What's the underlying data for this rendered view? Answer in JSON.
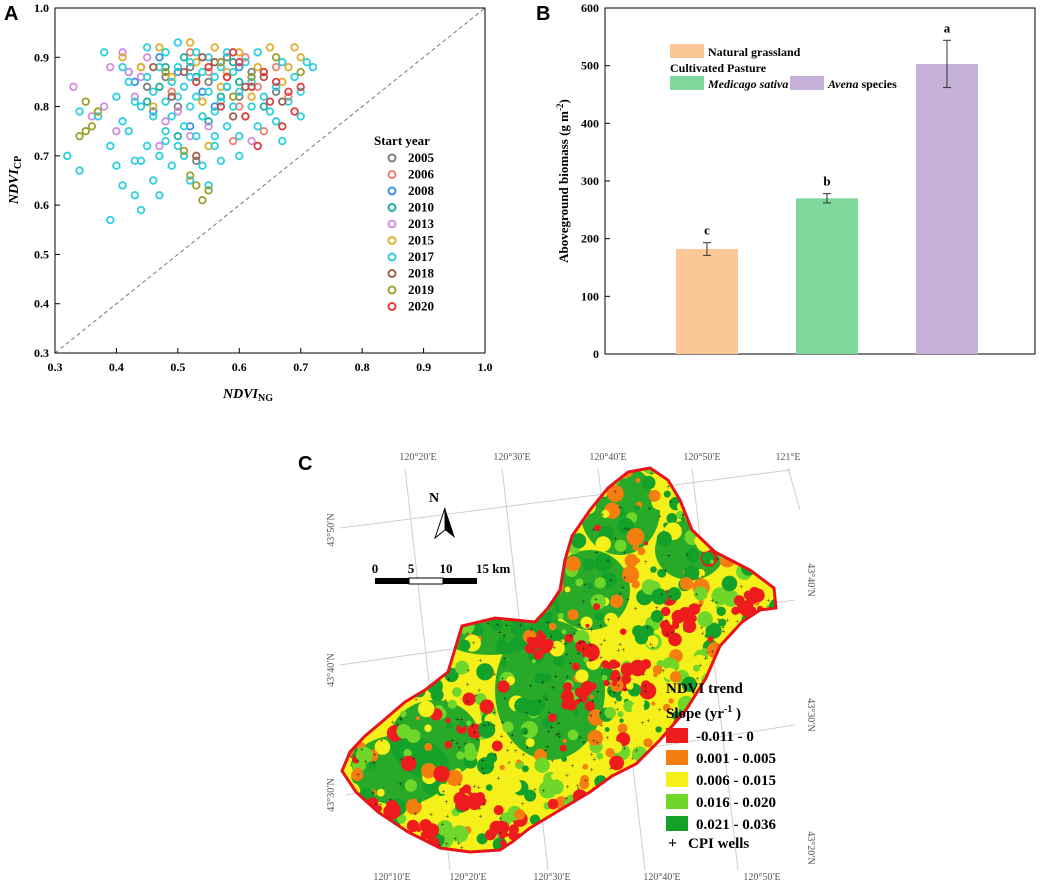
{
  "chart_data": [
    {
      "panel": "A",
      "type": "scatter",
      "panel_label": "A",
      "xlabel_main": "NDVI",
      "xlabel_sub": "NG",
      "ylabel_main": "NDVI",
      "ylabel_sub": "CP",
      "xlim": [
        0.3,
        1.0
      ],
      "ylim": [
        0.3,
        1.0
      ],
      "xticks": [
        "0.3",
        "0.4",
        "0.5",
        "0.6",
        "0.7",
        "0.8",
        "0.9",
        "1.0"
      ],
      "yticks": [
        "0.3",
        "0.4",
        "0.5",
        "0.6",
        "0.7",
        "0.8",
        "0.9",
        "1.0"
      ],
      "reference_line": "1:1",
      "legend_title": "Start year",
      "series": [
        {
          "name": "2005",
          "color": "#7f7f7f",
          "points": [
            [
              0.52,
              0.88
            ],
            [
              0.55,
              0.85
            ],
            [
              0.6,
              0.82
            ],
            [
              0.48,
              0.86
            ],
            [
              0.58,
              0.9
            ],
            [
              0.5,
              0.8
            ],
            [
              0.62,
              0.87
            ],
            [
              0.45,
              0.84
            ],
            [
              0.54,
              0.78
            ],
            [
              0.57,
              0.89
            ],
            [
              0.53,
              0.69
            ],
            [
              0.66,
              0.83
            ]
          ]
        },
        {
          "name": "2006",
          "color": "#f07f6f",
          "points": [
            [
              0.58,
              0.86
            ],
            [
              0.63,
              0.84
            ],
            [
              0.52,
              0.91
            ],
            [
              0.66,
              0.88
            ],
            [
              0.6,
              0.8
            ],
            [
              0.49,
              0.83
            ],
            [
              0.64,
              0.75
            ],
            [
              0.55,
              0.87
            ],
            [
              0.68,
              0.82
            ],
            [
              0.61,
              0.9
            ],
            [
              0.44,
              0.88
            ],
            [
              0.59,
              0.73
            ]
          ]
        },
        {
          "name": "2008",
          "color": "#3f8fdf",
          "points": [
            [
              0.5,
              0.87
            ],
            [
              0.54,
              0.83
            ],
            [
              0.47,
              0.9
            ],
            [
              0.56,
              0.8
            ],
            [
              0.6,
              0.88
            ],
            [
              0.52,
              0.76
            ],
            [
              0.43,
              0.85
            ],
            [
              0.58,
              0.84
            ],
            [
              0.46,
              0.79
            ],
            [
              0.62,
              0.86
            ]
          ]
        },
        {
          "name": "2010",
          "color": "#1faf9f",
          "points": [
            [
              0.48,
              0.88
            ],
            [
              0.53,
              0.86
            ],
            [
              0.57,
              0.82
            ],
            [
              0.51,
              0.9
            ],
            [
              0.45,
              0.81
            ],
            [
              0.6,
              0.85
            ],
            [
              0.55,
              0.77
            ],
            [
              0.42,
              0.87
            ],
            [
              0.59,
              0.89
            ],
            [
              0.5,
              0.74
            ],
            [
              0.64,
              0.8
            ],
            [
              0.47,
              0.84
            ]
          ]
        },
        {
          "name": "2013",
          "color": "#cf8fdf",
          "points": [
            [
              0.33,
              0.84
            ],
            [
              0.38,
              0.8
            ],
            [
              0.42,
              0.87
            ],
            [
              0.4,
              0.75
            ],
            [
              0.45,
              0.9
            ],
            [
              0.36,
              0.78
            ],
            [
              0.43,
              0.82
            ],
            [
              0.48,
              0.77
            ],
            [
              0.41,
              0.91
            ],
            [
              0.52,
              0.74
            ],
            [
              0.39,
              0.88
            ],
            [
              0.47,
              0.72
            ],
            [
              0.55,
              0.76
            ],
            [
              0.62,
              0.73
            ],
            [
              0.44,
              0.86
            ],
            [
              0.5,
              0.79
            ]
          ]
        },
        {
          "name": "2015",
          "color": "#dfaf2f",
          "points": [
            [
              0.41,
              0.9
            ],
            [
              0.47,
              0.92
            ],
            [
              0.52,
              0.93
            ],
            [
              0.56,
              0.92
            ],
            [
              0.6,
              0.91
            ],
            [
              0.65,
              0.92
            ],
            [
              0.69,
              0.92
            ],
            [
              0.7,
              0.9
            ],
            [
              0.63,
              0.88
            ],
            [
              0.58,
              0.87
            ],
            [
              0.53,
              0.89
            ],
            [
              0.49,
              0.86
            ],
            [
              0.44,
              0.88
            ],
            [
              0.67,
              0.85
            ],
            [
              0.61,
              0.78
            ],
            [
              0.55,
              0.72
            ],
            [
              0.51,
              0.7
            ],
            [
              0.57,
              0.84
            ],
            [
              0.46,
              0.8
            ],
            [
              0.62,
              0.82
            ],
            [
              0.68,
              0.88
            ],
            [
              0.54,
              0.81
            ]
          ]
        },
        {
          "name": "2017",
          "color": "#2fcfdf",
          "points": [
            [
              0.32,
              0.7
            ],
            [
              0.34,
              0.79
            ],
            [
              0.34,
              0.67
            ],
            [
              0.37,
              0.78
            ],
            [
              0.38,
              0.91
            ],
            [
              0.39,
              0.72
            ],
            [
              0.39,
              0.57
            ],
            [
              0.4,
              0.82
            ],
            [
              0.4,
              0.68
            ],
            [
              0.41,
              0.88
            ],
            [
              0.41,
              0.64
            ],
            [
              0.42,
              0.75
            ],
            [
              0.42,
              0.85
            ],
            [
              0.43,
              0.62
            ],
            [
              0.43,
              0.69
            ],
            [
              0.44,
              0.8
            ],
            [
              0.44,
              0.59
            ],
            [
              0.45,
              0.72
            ],
            [
              0.45,
              0.86
            ],
            [
              0.45,
              0.92
            ],
            [
              0.46,
              0.65
            ],
            [
              0.46,
              0.78
            ],
            [
              0.46,
              0.83
            ],
            [
              0.47,
              0.7
            ],
            [
              0.47,
              0.88
            ],
            [
              0.47,
              0.62
            ],
            [
              0.48,
              0.75
            ],
            [
              0.48,
              0.81
            ],
            [
              0.48,
              0.91
            ],
            [
              0.49,
              0.68
            ],
            [
              0.49,
              0.85
            ],
            [
              0.49,
              0.78
            ],
            [
              0.5,
              0.72
            ],
            [
              0.5,
              0.88
            ],
            [
              0.5,
              0.82
            ],
            [
              0.5,
              0.93
            ],
            [
              0.51,
              0.76
            ],
            [
              0.51,
              0.84
            ],
            [
              0.51,
              0.7
            ],
            [
              0.52,
              0.8
            ],
            [
              0.52,
              0.89
            ],
            [
              0.52,
              0.86
            ],
            [
              0.53,
              0.74
            ],
            [
              0.53,
              0.91
            ],
            [
              0.53,
              0.82
            ],
            [
              0.54,
              0.78
            ],
            [
              0.54,
              0.87
            ],
            [
              0.54,
              0.68
            ],
            [
              0.55,
              0.83
            ],
            [
              0.55,
              0.9
            ],
            [
              0.55,
              0.64
            ],
            [
              0.56,
              0.79
            ],
            [
              0.56,
              0.86
            ],
            [
              0.56,
              0.72
            ],
            [
              0.57,
              0.81
            ],
            [
              0.57,
              0.88
            ],
            [
              0.57,
              0.69
            ],
            [
              0.58,
              0.76
            ],
            [
              0.58,
              0.84
            ],
            [
              0.58,
              0.91
            ],
            [
              0.59,
              0.8
            ],
            [
              0.59,
              0.87
            ],
            [
              0.6,
              0.74
            ],
            [
              0.6,
              0.83
            ],
            [
              0.61,
              0.89
            ],
            [
              0.61,
              0.78
            ],
            [
              0.62,
              0.85
            ],
            [
              0.62,
              0.8
            ],
            [
              0.63,
              0.76
            ],
            [
              0.63,
              0.91
            ],
            [
              0.64,
              0.82
            ],
            [
              0.64,
              0.87
            ],
            [
              0.65,
              0.79
            ],
            [
              0.66,
              0.84
            ],
            [
              0.66,
              0.77
            ],
            [
              0.67,
              0.89
            ],
            [
              0.68,
              0.81
            ],
            [
              0.69,
              0.86
            ],
            [
              0.7,
              0.83
            ],
            [
              0.71,
              0.89
            ],
            [
              0.72,
              0.88
            ],
            [
              0.7,
              0.78
            ],
            [
              0.67,
              0.73
            ],
            [
              0.6,
              0.7
            ],
            [
              0.56,
              0.74
            ],
            [
              0.52,
              0.65
            ],
            [
              0.48,
              0.73
            ],
            [
              0.44,
              0.69
            ],
            [
              0.41,
              0.77
            ],
            [
              0.43,
              0.81
            ]
          ]
        },
        {
          "name": "2018",
          "color": "#9f5f4f",
          "points": [
            [
              0.51,
              0.87
            ],
            [
              0.56,
              0.89
            ],
            [
              0.61,
              0.84
            ],
            [
              0.49,
              0.82
            ],
            [
              0.54,
              0.9
            ],
            [
              0.59,
              0.78
            ],
            [
              0.64,
              0.86
            ],
            [
              0.46,
              0.88
            ],
            [
              0.53,
              0.7
            ],
            [
              0.67,
              0.81
            ]
          ]
        },
        {
          "name": "2019",
          "color": "#9f9f2f",
          "points": [
            [
              0.34,
              0.74
            ],
            [
              0.35,
              0.75
            ],
            [
              0.35,
              0.81
            ],
            [
              0.36,
              0.76
            ],
            [
              0.37,
              0.79
            ],
            [
              0.52,
              0.66
            ],
            [
              0.53,
              0.64
            ],
            [
              0.54,
              0.61
            ],
            [
              0.55,
              0.63
            ],
            [
              0.51,
              0.71
            ],
            [
              0.48,
              0.87
            ],
            [
              0.57,
              0.89
            ],
            [
              0.62,
              0.86
            ],
            [
              0.66,
              0.9
            ],
            [
              0.7,
              0.87
            ],
            [
              0.59,
              0.82
            ]
          ]
        },
        {
          "name": "2020",
          "color": "#df3f3f",
          "points": [
            [
              0.55,
              0.88
            ],
            [
              0.58,
              0.86
            ],
            [
              0.6,
              0.89
            ],
            [
              0.62,
              0.84
            ],
            [
              0.64,
              0.87
            ],
            [
              0.66,
              0.85
            ],
            [
              0.68,
              0.83
            ],
            [
              0.7,
              0.84
            ],
            [
              0.57,
              0.8
            ],
            [
              0.61,
              0.78
            ],
            [
              0.65,
              0.81
            ],
            [
              0.53,
              0.85
            ],
            [
              0.59,
              0.91
            ],
            [
              0.63,
              0.72
            ],
            [
              0.67,
              0.76
            ],
            [
              0.69,
              0.79
            ]
          ]
        }
      ]
    },
    {
      "panel": "B",
      "type": "bar",
      "panel_label": "B",
      "ylabel": "Aboveground biomass (g m",
      "ylabel_sup": "-2",
      "ylabel_tail": ")",
      "ylim": [
        0,
        600
      ],
      "yticks": [
        "0",
        "100",
        "200",
        "300",
        "400",
        "500",
        "600"
      ],
      "categories": [
        "Natural grassland",
        "Medicago sativa",
        "Avena species"
      ],
      "values": [
        182,
        270,
        503
      ],
      "errors": [
        11,
        8,
        41
      ],
      "letters": [
        "c",
        "b",
        "a"
      ],
      "colors": [
        "#fbc796",
        "#7fd89b",
        "#c6b1d8"
      ],
      "legend": {
        "item1": "Natural grassland",
        "group_title": "Cultivated Pasture",
        "item2": "Medicago sativa",
        "item3_italic": "Avena",
        "item3_rest": " species"
      }
    },
    {
      "panel": "C",
      "type": "map",
      "panel_label": "C",
      "top_lon_labels": [
        "120°20′E",
        "120°30′E",
        "120°40′E",
        "120°50′E",
        "121°E"
      ],
      "bottom_lon_labels": [
        "120°10′E",
        "120°20′E",
        "120°30′E",
        "120°40′E",
        "120°50′E"
      ],
      "left_lat_labels": [
        "43°50′N",
        "43°40′N",
        "43°30′N"
      ],
      "right_lat_labels": [
        "43°40′N",
        "43°30′N",
        "43°20′N"
      ],
      "north_label": "N",
      "scale_labels": [
        "0",
        "5",
        "10",
        "15 km"
      ],
      "legend_title": "NDVI trend",
      "legend_subtitle_main": "Slope (yr",
      "legend_subtitle_sup": "-1",
      "legend_subtitle_tail": " )",
      "classes": [
        {
          "label": "-0.011 - 0",
          "color": "#ee1c1c"
        },
        {
          "label": "0.001 - 0.005",
          "color": "#f47f10"
        },
        {
          "label": "0.006 - 0.015",
          "color": "#f5f01a"
        },
        {
          "label": "0.016 - 0.020",
          "color": "#6fd62a"
        },
        {
          "label": "0.021 - 0.036",
          "color": "#13a12a"
        }
      ],
      "wells_symbol": "+",
      "wells_label": "CPI wells"
    }
  ]
}
